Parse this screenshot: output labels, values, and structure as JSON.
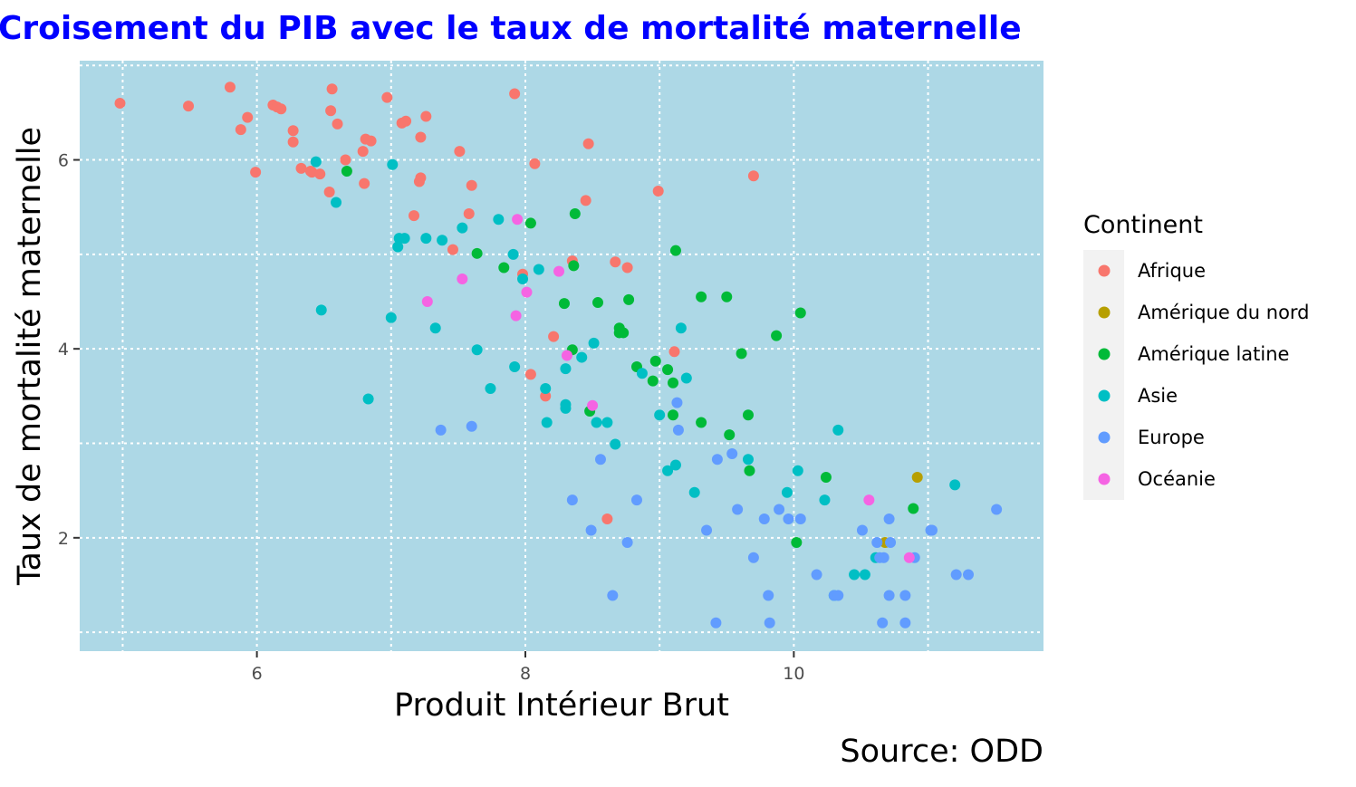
{
  "chart_data": {
    "type": "scatter",
    "title": "Croisement du PIB avec le taux de mortalité maternelle",
    "xlabel": "Produit Intérieur Brut",
    "ylabel": "Taux de mortalité maternelle",
    "caption": "Source: ODD",
    "xlim": [
      4.68,
      11.86
    ],
    "ylim": [
      0.8,
      7.05
    ],
    "x_ticks": [
      6,
      8,
      10
    ],
    "x_tick_labels": [
      "6",
      "8",
      "10"
    ],
    "y_ticks": [
      2,
      4,
      6
    ],
    "y_tick_labels": [
      "2",
      "4",
      "6"
    ],
    "grid": true,
    "legend_title": "Continent",
    "legend_position": "right",
    "series": [
      {
        "name": "Afrique",
        "color": "#F8766D",
        "points": [
          [
            4.98,
            6.6
          ],
          [
            5.49,
            6.57
          ],
          [
            5.8,
            6.77
          ],
          [
            5.88,
            6.32
          ],
          [
            5.93,
            6.45
          ],
          [
            5.99,
            5.87
          ],
          [
            6.12,
            6.58
          ],
          [
            6.15,
            6.56
          ],
          [
            6.18,
            6.54
          ],
          [
            6.27,
            6.31
          ],
          [
            6.27,
            6.19
          ],
          [
            6.33,
            5.91
          ],
          [
            6.4,
            5.88
          ],
          [
            6.41,
            5.87
          ],
          [
            6.47,
            5.85
          ],
          [
            6.54,
            5.66
          ],
          [
            6.55,
            6.52
          ],
          [
            6.56,
            6.75
          ],
          [
            6.6,
            6.38
          ],
          [
            6.66,
            6.0
          ],
          [
            6.79,
            6.09
          ],
          [
            6.8,
            5.75
          ],
          [
            6.81,
            6.22
          ],
          [
            6.85,
            6.2
          ],
          [
            6.97,
            6.66
          ],
          [
            7.08,
            6.39
          ],
          [
            7.11,
            6.41
          ],
          [
            7.17,
            5.41
          ],
          [
            7.21,
            5.77
          ],
          [
            7.22,
            5.81
          ],
          [
            7.22,
            6.24
          ],
          [
            7.26,
            6.46
          ],
          [
            7.46,
            5.05
          ],
          [
            7.51,
            6.09
          ],
          [
            7.58,
            5.43
          ],
          [
            7.6,
            5.73
          ],
          [
            7.92,
            6.7
          ],
          [
            7.98,
            4.79
          ],
          [
            8.04,
            3.73
          ],
          [
            8.07,
            5.96
          ],
          [
            8.15,
            3.5
          ],
          [
            8.21,
            4.13
          ],
          [
            8.35,
            4.93
          ],
          [
            8.45,
            5.57
          ],
          [
            8.47,
            6.17
          ],
          [
            8.61,
            2.2
          ],
          [
            8.67,
            4.92
          ],
          [
            8.76,
            4.86
          ],
          [
            8.99,
            5.67
          ],
          [
            9.11,
            3.97
          ],
          [
            9.7,
            5.83
          ]
        ]
      },
      {
        "name": "Amérique du nord",
        "color": "#B79F00",
        "points": [
          [
            10.92,
            2.64
          ],
          [
            10.68,
            1.95
          ]
        ]
      },
      {
        "name": "Amérique latine",
        "color": "#00BA38",
        "points": [
          [
            6.67,
            5.88
          ],
          [
            7.64,
            5.01
          ],
          [
            7.84,
            4.86
          ],
          [
            8.04,
            5.33
          ],
          [
            8.29,
            4.48
          ],
          [
            8.35,
            3.99
          ],
          [
            8.36,
            4.88
          ],
          [
            8.37,
            5.43
          ],
          [
            8.48,
            3.34
          ],
          [
            8.54,
            4.49
          ],
          [
            8.7,
            4.22
          ],
          [
            8.7,
            4.17
          ],
          [
            8.73,
            4.17
          ],
          [
            8.77,
            4.52
          ],
          [
            8.83,
            3.81
          ],
          [
            8.95,
            3.66
          ],
          [
            8.97,
            3.87
          ],
          [
            9.06,
            3.78
          ],
          [
            9.1,
            3.64
          ],
          [
            9.1,
            3.3
          ],
          [
            9.12,
            5.04
          ],
          [
            9.31,
            4.55
          ],
          [
            9.31,
            3.22
          ],
          [
            9.5,
            4.55
          ],
          [
            9.52,
            3.09
          ],
          [
            9.61,
            3.95
          ],
          [
            9.66,
            3.3
          ],
          [
            9.67,
            2.71
          ],
          [
            9.87,
            4.14
          ],
          [
            10.02,
            1.95
          ],
          [
            10.05,
            4.38
          ],
          [
            10.24,
            2.64
          ],
          [
            10.89,
            2.31
          ]
        ]
      },
      {
        "name": "Asie",
        "color": "#00BFC4",
        "points": [
          [
            6.44,
            5.98
          ],
          [
            6.48,
            4.41
          ],
          [
            6.59,
            5.55
          ],
          [
            6.83,
            3.47
          ],
          [
            7.0,
            4.33
          ],
          [
            7.01,
            5.95
          ],
          [
            7.05,
            5.08
          ],
          [
            7.06,
            5.17
          ],
          [
            7.1,
            5.17
          ],
          [
            7.26,
            5.17
          ],
          [
            7.33,
            4.22
          ],
          [
            7.38,
            5.15
          ],
          [
            7.53,
            5.28
          ],
          [
            7.64,
            3.99
          ],
          [
            7.74,
            3.58
          ],
          [
            7.8,
            5.37
          ],
          [
            7.91,
            5.0
          ],
          [
            7.92,
            3.81
          ],
          [
            7.98,
            4.74
          ],
          [
            8.1,
            4.84
          ],
          [
            8.15,
            3.58
          ],
          [
            8.16,
            3.22
          ],
          [
            8.3,
            3.41
          ],
          [
            8.3,
            3.37
          ],
          [
            8.3,
            3.79
          ],
          [
            8.42,
            3.91
          ],
          [
            8.51,
            4.06
          ],
          [
            8.53,
            3.22
          ],
          [
            8.61,
            3.22
          ],
          [
            8.67,
            2.99
          ],
          [
            8.87,
            3.74
          ],
          [
            9.0,
            3.3
          ],
          [
            9.06,
            2.71
          ],
          [
            9.12,
            2.77
          ],
          [
            9.16,
            4.22
          ],
          [
            9.2,
            3.69
          ],
          [
            9.26,
            2.48
          ],
          [
            9.66,
            2.83
          ],
          [
            9.95,
            2.48
          ],
          [
            10.03,
            2.71
          ],
          [
            10.23,
            2.4
          ],
          [
            10.3,
            1.39
          ],
          [
            10.33,
            3.14
          ],
          [
            10.45,
            1.61
          ],
          [
            10.53,
            1.61
          ],
          [
            10.61,
            1.79
          ],
          [
            11.2,
            2.56
          ]
        ]
      },
      {
        "name": "Europe",
        "color": "#619CFF",
        "points": [
          [
            7.37,
            3.14
          ],
          [
            7.6,
            3.18
          ],
          [
            8.35,
            2.4
          ],
          [
            8.49,
            2.08
          ],
          [
            8.56,
            2.83
          ],
          [
            8.65,
            1.39
          ],
          [
            8.76,
            1.95
          ],
          [
            8.83,
            2.4
          ],
          [
            9.13,
            3.43
          ],
          [
            9.14,
            3.14
          ],
          [
            9.35,
            2.08
          ],
          [
            9.42,
            1.1
          ],
          [
            9.43,
            2.83
          ],
          [
            9.54,
            2.89
          ],
          [
            9.58,
            2.3
          ],
          [
            9.7,
            1.79
          ],
          [
            9.78,
            2.2
          ],
          [
            9.81,
            1.39
          ],
          [
            9.82,
            1.1
          ],
          [
            9.89,
            2.3
          ],
          [
            9.96,
            2.2
          ],
          [
            10.05,
            2.2
          ],
          [
            10.17,
            1.61
          ],
          [
            10.3,
            1.39
          ],
          [
            10.33,
            1.39
          ],
          [
            10.51,
            2.08
          ],
          [
            10.62,
            1.95
          ],
          [
            10.64,
            1.79
          ],
          [
            10.66,
            1.1
          ],
          [
            10.67,
            1.79
          ],
          [
            10.71,
            1.39
          ],
          [
            10.71,
            2.2
          ],
          [
            10.72,
            1.95
          ],
          [
            10.83,
            1.39
          ],
          [
            10.83,
            1.1
          ],
          [
            10.9,
            1.79
          ],
          [
            11.02,
            2.08
          ],
          [
            11.03,
            2.08
          ],
          [
            11.21,
            1.61
          ],
          [
            11.3,
            1.61
          ],
          [
            11.51,
            2.3
          ]
        ]
      },
      {
        "name": "Océanie",
        "color": "#F564E3",
        "points": [
          [
            7.27,
            4.5
          ],
          [
            7.53,
            4.74
          ],
          [
            7.93,
            4.35
          ],
          [
            7.94,
            5.37
          ],
          [
            8.01,
            4.6
          ],
          [
            8.25,
            4.82
          ],
          [
            8.31,
            3.93
          ],
          [
            8.5,
            3.4
          ],
          [
            10.56,
            2.4
          ],
          [
            10.86,
            1.79
          ]
        ]
      }
    ]
  }
}
